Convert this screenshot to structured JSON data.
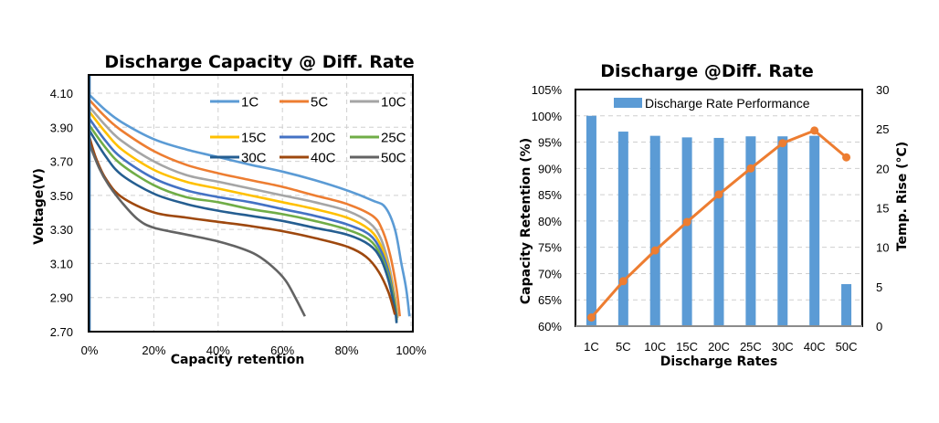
{
  "chart_data": [
    {
      "type": "line",
      "title": "Discharge  Capacity @ Diff. Rate",
      "xlabel": "Capacity retention",
      "ylabel": "Voltage(V)",
      "xlim": [
        0,
        100
      ],
      "ylim": [
        2.7,
        4.21
      ],
      "x_ticks": [
        "0%",
        "20%",
        "40%",
        "60%",
        "80%",
        "100%"
      ],
      "x_tick_values": [
        0,
        20,
        40,
        60,
        80,
        100
      ],
      "y_ticks": [
        "4.10",
        "3.90",
        "3.70",
        "3.50",
        "3.30",
        "3.10",
        "2.90",
        "2.70"
      ],
      "y_tick_values": [
        4.1,
        3.9,
        3.7,
        3.5,
        3.3,
        3.1,
        2.9,
        2.7
      ],
      "grid": true,
      "legend_position": "top-right",
      "series": [
        {
          "name": "1C",
          "color": "#5B9BD5",
          "points": [
            [
              0,
              4.09
            ],
            [
              5,
              4.0
            ],
            [
              10,
              3.93
            ],
            [
              20,
              3.83
            ],
            [
              30,
              3.77
            ],
            [
              40,
              3.725
            ],
            [
              50,
              3.68
            ],
            [
              60,
              3.64
            ],
            [
              70,
              3.59
            ],
            [
              80,
              3.53
            ],
            [
              88,
              3.47
            ],
            [
              92,
              3.43
            ],
            [
              95,
              3.3
            ],
            [
              97,
              3.1
            ],
            [
              98.5,
              2.95
            ],
            [
              99.5,
              2.79
            ]
          ]
        },
        {
          "name": "5C",
          "color": "#ED7D31",
          "points": [
            [
              0,
              4.06
            ],
            [
              5,
              3.96
            ],
            [
              10,
              3.88
            ],
            [
              20,
              3.76
            ],
            [
              30,
              3.68
            ],
            [
              40,
              3.63
            ],
            [
              50,
              3.59
            ],
            [
              60,
              3.55
            ],
            [
              70,
              3.5
            ],
            [
              80,
              3.45
            ],
            [
              88,
              3.38
            ],
            [
              91,
              3.3
            ],
            [
              93.5,
              3.15
            ],
            [
              95.5,
              2.95
            ],
            [
              96.5,
              2.79
            ]
          ]
        },
        {
          "name": "10C",
          "color": "#A5A5A5",
          "points": [
            [
              0,
              4.02
            ],
            [
              5,
              3.91
            ],
            [
              10,
              3.82
            ],
            [
              20,
              3.7
            ],
            [
              30,
              3.62
            ],
            [
              40,
              3.58
            ],
            [
              50,
              3.54
            ],
            [
              60,
              3.5
            ],
            [
              70,
              3.46
            ],
            [
              80,
              3.41
            ],
            [
              87,
              3.34
            ],
            [
              90.5,
              3.25
            ],
            [
              93,
              3.1
            ],
            [
              95,
              2.9
            ],
            [
              95.8,
              2.78
            ]
          ]
        },
        {
          "name": "15C",
          "color": "#FFC000",
          "points": [
            [
              0,
              3.99
            ],
            [
              5,
              3.87
            ],
            [
              10,
              3.77
            ],
            [
              20,
              3.65
            ],
            [
              30,
              3.58
            ],
            [
              40,
              3.54
            ],
            [
              50,
              3.5
            ],
            [
              60,
              3.46
            ],
            [
              70,
              3.42
            ],
            [
              80,
              3.37
            ],
            [
              87,
              3.3
            ],
            [
              90.5,
              3.21
            ],
            [
              93,
              3.07
            ],
            [
              95,
              2.88
            ],
            [
              95.6,
              2.77
            ]
          ]
        },
        {
          "name": "20C",
          "color": "#4472C4",
          "points": [
            [
              0,
              3.95
            ],
            [
              5,
              3.82
            ],
            [
              10,
              3.72
            ],
            [
              20,
              3.6
            ],
            [
              30,
              3.53
            ],
            [
              40,
              3.49
            ],
            [
              50,
              3.46
            ],
            [
              60,
              3.42
            ],
            [
              70,
              3.38
            ],
            [
              80,
              3.33
            ],
            [
              87,
              3.27
            ],
            [
              90.5,
              3.18
            ],
            [
              93,
              3.05
            ],
            [
              95,
              2.86
            ],
            [
              95.5,
              2.77
            ]
          ]
        },
        {
          "name": "25C",
          "color": "#70AD47",
          "points": [
            [
              0,
              3.91
            ],
            [
              5,
              3.78
            ],
            [
              10,
              3.68
            ],
            [
              20,
              3.56
            ],
            [
              30,
              3.49
            ],
            [
              40,
              3.46
            ],
            [
              50,
              3.42
            ],
            [
              60,
              3.39
            ],
            [
              70,
              3.35
            ],
            [
              80,
              3.3
            ],
            [
              87,
              3.24
            ],
            [
              90.5,
              3.15
            ],
            [
              93,
              3.02
            ],
            [
              95,
              2.85
            ],
            [
              95.5,
              2.76
            ]
          ]
        },
        {
          "name": "30C",
          "color": "#255E91",
          "points": [
            [
              0,
              3.88
            ],
            [
              5,
              3.73
            ],
            [
              10,
              3.62
            ],
            [
              20,
              3.51
            ],
            [
              30,
              3.45
            ],
            [
              40,
              3.41
            ],
            [
              50,
              3.38
            ],
            [
              60,
              3.35
            ],
            [
              70,
              3.31
            ],
            [
              80,
              3.27
            ],
            [
              87,
              3.21
            ],
            [
              90.5,
              3.13
            ],
            [
              93,
              3.0
            ],
            [
              95,
              2.83
            ],
            [
              95.5,
              2.75
            ]
          ]
        },
        {
          "name": "40C",
          "color": "#9E480E",
          "points": [
            [
              0,
              3.84
            ],
            [
              2,
              3.72
            ],
            [
              5,
              3.6
            ],
            [
              10,
              3.49
            ],
            [
              20,
              3.4
            ],
            [
              30,
              3.37
            ],
            [
              40,
              3.345
            ],
            [
              50,
              3.32
            ],
            [
              60,
              3.29
            ],
            [
              70,
              3.25
            ],
            [
              80,
              3.2
            ],
            [
              86,
              3.14
            ],
            [
              90,
              3.05
            ],
            [
              93,
              2.93
            ],
            [
              95,
              2.8
            ]
          ]
        },
        {
          "name": "50C",
          "color": "#636363",
          "points": [
            [
              0,
              3.8
            ],
            [
              3,
              3.66
            ],
            [
              6,
              3.56
            ],
            [
              10,
              3.46
            ],
            [
              15,
              3.36
            ],
            [
              20,
              3.31
            ],
            [
              30,
              3.27
            ],
            [
              40,
              3.23
            ],
            [
              47,
              3.19
            ],
            [
              52,
              3.15
            ],
            [
              57,
              3.08
            ],
            [
              61,
              3.0
            ],
            [
              64,
              2.9
            ],
            [
              67,
              2.79
            ]
          ]
        }
      ]
    },
    {
      "type": "bar",
      "title": "Discharge @Diff. Rate",
      "xlabel": "Discharge Rates",
      "ylabel": "Capacity Retention  (%)",
      "y2label": "Temp. Rise (°C)",
      "categories": [
        "1C",
        "5C",
        "10C",
        "15C",
        "20C",
        "25C",
        "30C",
        "40C",
        "50C"
      ],
      "ylim": [
        60,
        105
      ],
      "y_ticks": [
        "105%",
        "100%",
        "95%",
        "90%",
        "85%",
        "80%",
        "75%",
        "70%",
        "65%",
        "60%"
      ],
      "y_tick_values": [
        105,
        100,
        95,
        90,
        85,
        80,
        75,
        70,
        65,
        60
      ],
      "y2lim": [
        0,
        30
      ],
      "y2_ticks": [
        "30",
        "25",
        "20",
        "15",
        "10",
        "5",
        "0"
      ],
      "y2_tick_values": [
        30,
        25,
        20,
        15,
        10,
        5,
        0
      ],
      "grid": true,
      "legend_position": "top-center",
      "series": [
        {
          "name": "Discharge Rate Performance",
          "type": "bar",
          "axis": "left",
          "color": "#5B9BD5",
          "values": [
            100,
            97.0,
            96.2,
            95.9,
            95.8,
            96.1,
            96.1,
            96.2,
            68.0
          ]
        },
        {
          "name": "Temp. Rise",
          "type": "line",
          "axis": "right",
          "color": "#ED7D31",
          "values": [
            1.1,
            5.7,
            9.6,
            13.2,
            16.7,
            20.0,
            23.2,
            24.8,
            21.4
          ]
        }
      ]
    }
  ]
}
